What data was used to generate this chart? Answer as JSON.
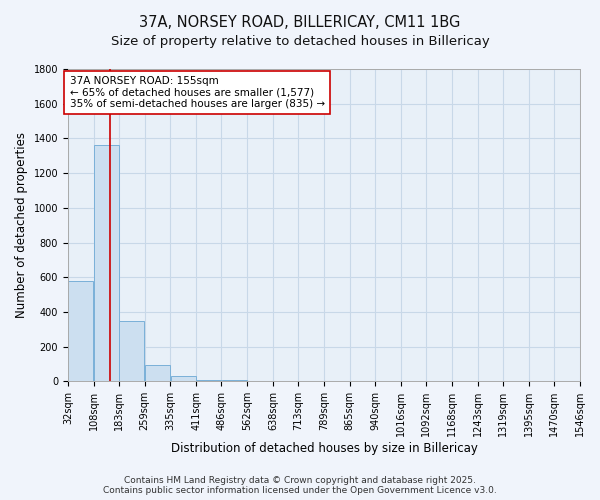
{
  "title_line1": "37A, NORSEY ROAD, BILLERICAY, CM11 1BG",
  "title_line2": "Size of property relative to detached houses in Billericay",
  "xlabel": "Distribution of detached houses by size in Billericay",
  "ylabel": "Number of detached properties",
  "bin_labels": [
    "32sqm",
    "108sqm",
    "183sqm",
    "259sqm",
    "335sqm",
    "411sqm",
    "486sqm",
    "562sqm",
    "638sqm",
    "713sqm",
    "789sqm",
    "865sqm",
    "940sqm",
    "1016sqm",
    "1092sqm",
    "1168sqm",
    "1243sqm",
    "1319sqm",
    "1395sqm",
    "1470sqm",
    "1546sqm"
  ],
  "bin_edges": [
    32,
    108,
    183,
    259,
    335,
    411,
    486,
    562,
    638,
    713,
    789,
    865,
    940,
    1016,
    1092,
    1168,
    1243,
    1319,
    1395,
    1470,
    1546
  ],
  "bar_heights": [
    580,
    1360,
    350,
    95,
    30,
    10,
    5,
    3,
    2,
    1,
    1,
    1,
    1,
    0,
    0,
    0,
    0,
    0,
    0,
    0
  ],
  "bar_color": "#ccdff0",
  "bar_edge_color": "#7ab0d8",
  "grid_color": "#c8d8e8",
  "bg_color": "#e8f0f8",
  "fig_bg_color": "#f0f4fb",
  "property_size": 155,
  "vline_color": "#cc0000",
  "annotation_line1": "37A NORSEY ROAD: 155sqm",
  "annotation_line2": "← 65% of detached houses are smaller (1,577)",
  "annotation_line3": "35% of semi-detached houses are larger (835) →",
  "annotation_box_color": "#ffffff",
  "annotation_border_color": "#cc0000",
  "ylim": [
    0,
    1800
  ],
  "yticks": [
    0,
    200,
    400,
    600,
    800,
    1000,
    1200,
    1400,
    1600,
    1800
  ],
  "footnote": "Contains HM Land Registry data © Crown copyright and database right 2025.\nContains public sector information licensed under the Open Government Licence v3.0.",
  "title_fontsize": 10.5,
  "subtitle_fontsize": 9.5,
  "xlabel_fontsize": 8.5,
  "ylabel_fontsize": 8.5,
  "annotation_fontsize": 7.5,
  "tick_fontsize": 7,
  "footnote_fontsize": 6.5
}
